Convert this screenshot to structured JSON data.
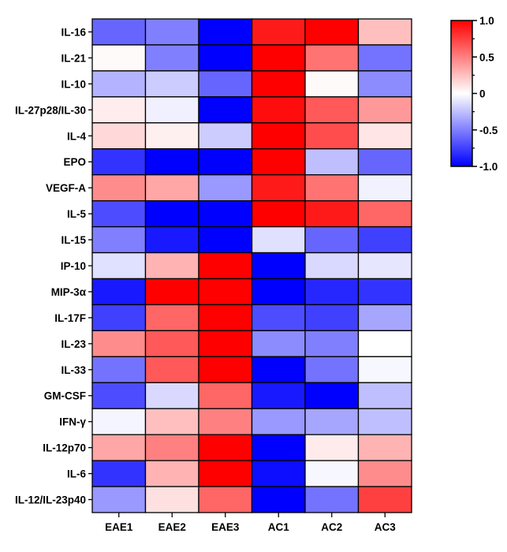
{
  "chart_data": {
    "type": "heatmap",
    "title": "",
    "xlabel": "",
    "ylabel": "",
    "columns": [
      "EAE1",
      "EAE2",
      "EAE3",
      "AC1",
      "AC2",
      "AC3"
    ],
    "rows": [
      "IL-16",
      "IL-21",
      "IL-10",
      "IL-27p28/IL-30",
      "IL-4",
      "EPO",
      "VEGF-A",
      "IL-5",
      "IL-15",
      "IP-10",
      "MIP-3α",
      "IL-17F",
      "IL-23",
      "IL-33",
      "GM-CSF",
      "IFN-γ",
      "IL-12p70",
      "IL-6",
      "IL-12/IL-23p40"
    ],
    "values": [
      [
        -0.6,
        -0.5,
        -1.0,
        0.9,
        1.0,
        0.25
      ],
      [
        0.02,
        -0.5,
        -1.0,
        1.0,
        0.55,
        -0.55
      ],
      [
        -0.3,
        -0.2,
        -0.6,
        1.0,
        0.02,
        -0.45
      ],
      [
        0.07,
        -0.06,
        -1.0,
        0.95,
        0.65,
        0.4
      ],
      [
        0.15,
        0.06,
        -0.2,
        1.0,
        0.7,
        0.1
      ],
      [
        -0.8,
        -1.0,
        -1.0,
        1.0,
        -0.25,
        -0.6
      ],
      [
        0.45,
        0.35,
        -0.4,
        0.9,
        0.55,
        -0.05
      ],
      [
        -0.7,
        -1.0,
        -1.0,
        1.0,
        0.9,
        0.6
      ],
      [
        -0.5,
        -0.9,
        -1.0,
        -0.12,
        -0.6,
        -0.75
      ],
      [
        -0.12,
        0.3,
        1.0,
        -1.0,
        -0.15,
        -0.1
      ],
      [
        -0.9,
        1.0,
        1.0,
        -1.0,
        -0.85,
        -0.8
      ],
      [
        -0.75,
        0.6,
        1.0,
        -0.7,
        -0.75,
        -0.35
      ],
      [
        0.45,
        0.65,
        1.0,
        -0.45,
        -0.5,
        0.0
      ],
      [
        -0.55,
        0.65,
        1.0,
        -1.0,
        -0.55,
        -0.03
      ],
      [
        -0.7,
        -0.15,
        0.6,
        -0.9,
        -1.0,
        -0.25
      ],
      [
        -0.04,
        0.25,
        0.5,
        -0.4,
        -0.35,
        -0.25
      ],
      [
        0.35,
        0.5,
        1.0,
        -1.0,
        0.08,
        0.3
      ],
      [
        -0.8,
        0.3,
        1.0,
        -0.95,
        -0.03,
        0.45
      ],
      [
        -0.4,
        0.12,
        0.6,
        -1.0,
        -0.55,
        0.75
      ]
    ],
    "color_scale": {
      "min": -1.0,
      "max": 1.0,
      "ticks": [
        {
          "value": 1.0,
          "label": "1.0"
        },
        {
          "value": 0.5,
          "label": "0.5"
        },
        {
          "value": 0,
          "label": "0"
        },
        {
          "value": -0.5,
          "label": "-0.5"
        },
        {
          "value": -1.0,
          "label": "-1.0"
        }
      ],
      "low_color": "#0000ff",
      "mid_color": "#ffffff",
      "high_color": "#ff0000"
    }
  }
}
